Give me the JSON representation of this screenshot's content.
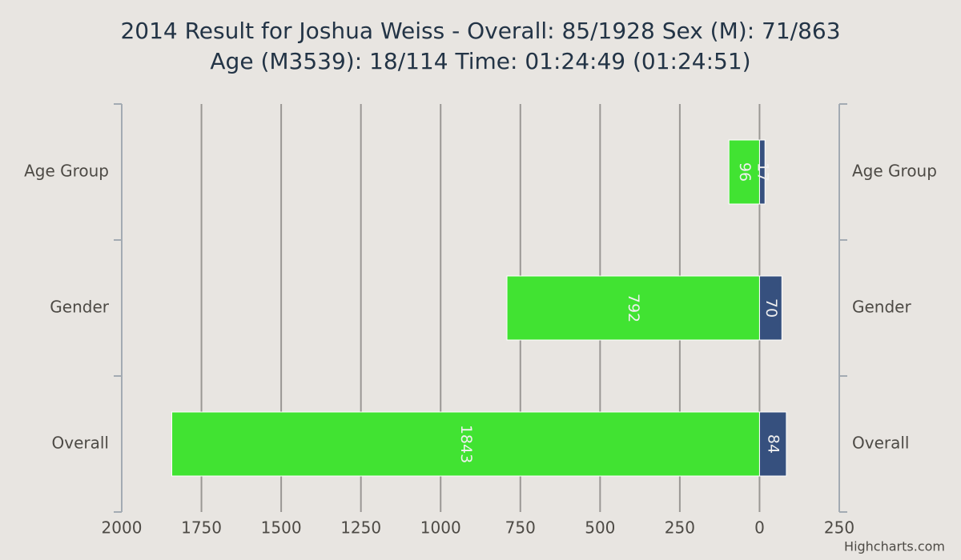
{
  "chart_data": {
    "type": "stacked-bar-horizontal",
    "title": [
      "2014 Result for Joshua Weiss - Overall: 85/1928 Sex (M): 71/863",
      "Age (M3539): 18/114 Time: 01:24:49 (01:24:51)"
    ],
    "categories": [
      "Age Group",
      "Gender",
      "Overall"
    ],
    "series": [
      {
        "color": "#41e332",
        "values": [
          96,
          792,
          1843
        ]
      },
      {
        "color": "#36507e",
        "values": [
          -17,
          -70,
          -84
        ],
        "value_labels": [
          "17",
          "70",
          "84"
        ]
      }
    ],
    "xlim": [
      2000,
      -250
    ],
    "xticks": [
      2000,
      1750,
      1500,
      1250,
      1000,
      750,
      500,
      250,
      0,
      {
        "value": -250,
        "label": "250"
      }
    ],
    "grid": true,
    "credits": "Highcharts.com"
  }
}
